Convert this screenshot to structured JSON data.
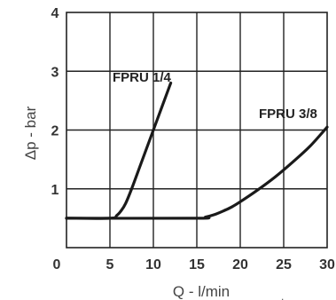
{
  "chart_data": {
    "type": "line",
    "title": "",
    "xlabel": "Q - l/min",
    "ylabel": "Δp - bar",
    "xlim": [
      0,
      30
    ],
    "ylim": [
      0,
      4
    ],
    "grid": true,
    "x_ticks": [
      "0",
      "5",
      "10",
      "15",
      "20",
      "25",
      "30"
    ],
    "y_ticks": [
      "1",
      "2",
      "3",
      "4"
    ],
    "series": [
      {
        "name": "FPRU 1/4",
        "x": [
          0,
          5,
          5.8,
          6.3,
          6.8,
          7.5,
          8.5,
          9.5,
          10.5,
          11.5,
          12
        ],
        "y": [
          0.5,
          0.5,
          0.55,
          0.63,
          0.75,
          1.0,
          1.4,
          1.8,
          2.2,
          2.6,
          2.8
        ]
      },
      {
        "name": "FPRU 3/8",
        "x": [
          0,
          15,
          16,
          17,
          18,
          19,
          20,
          22,
          24,
          26,
          28,
          30
        ],
        "y": [
          0.5,
          0.5,
          0.52,
          0.56,
          0.62,
          0.69,
          0.78,
          0.98,
          1.2,
          1.45,
          1.72,
          2.05
        ]
      }
    ],
    "series_labels": [
      "FPRU 1/4",
      "FPRU 3/8"
    ]
  }
}
